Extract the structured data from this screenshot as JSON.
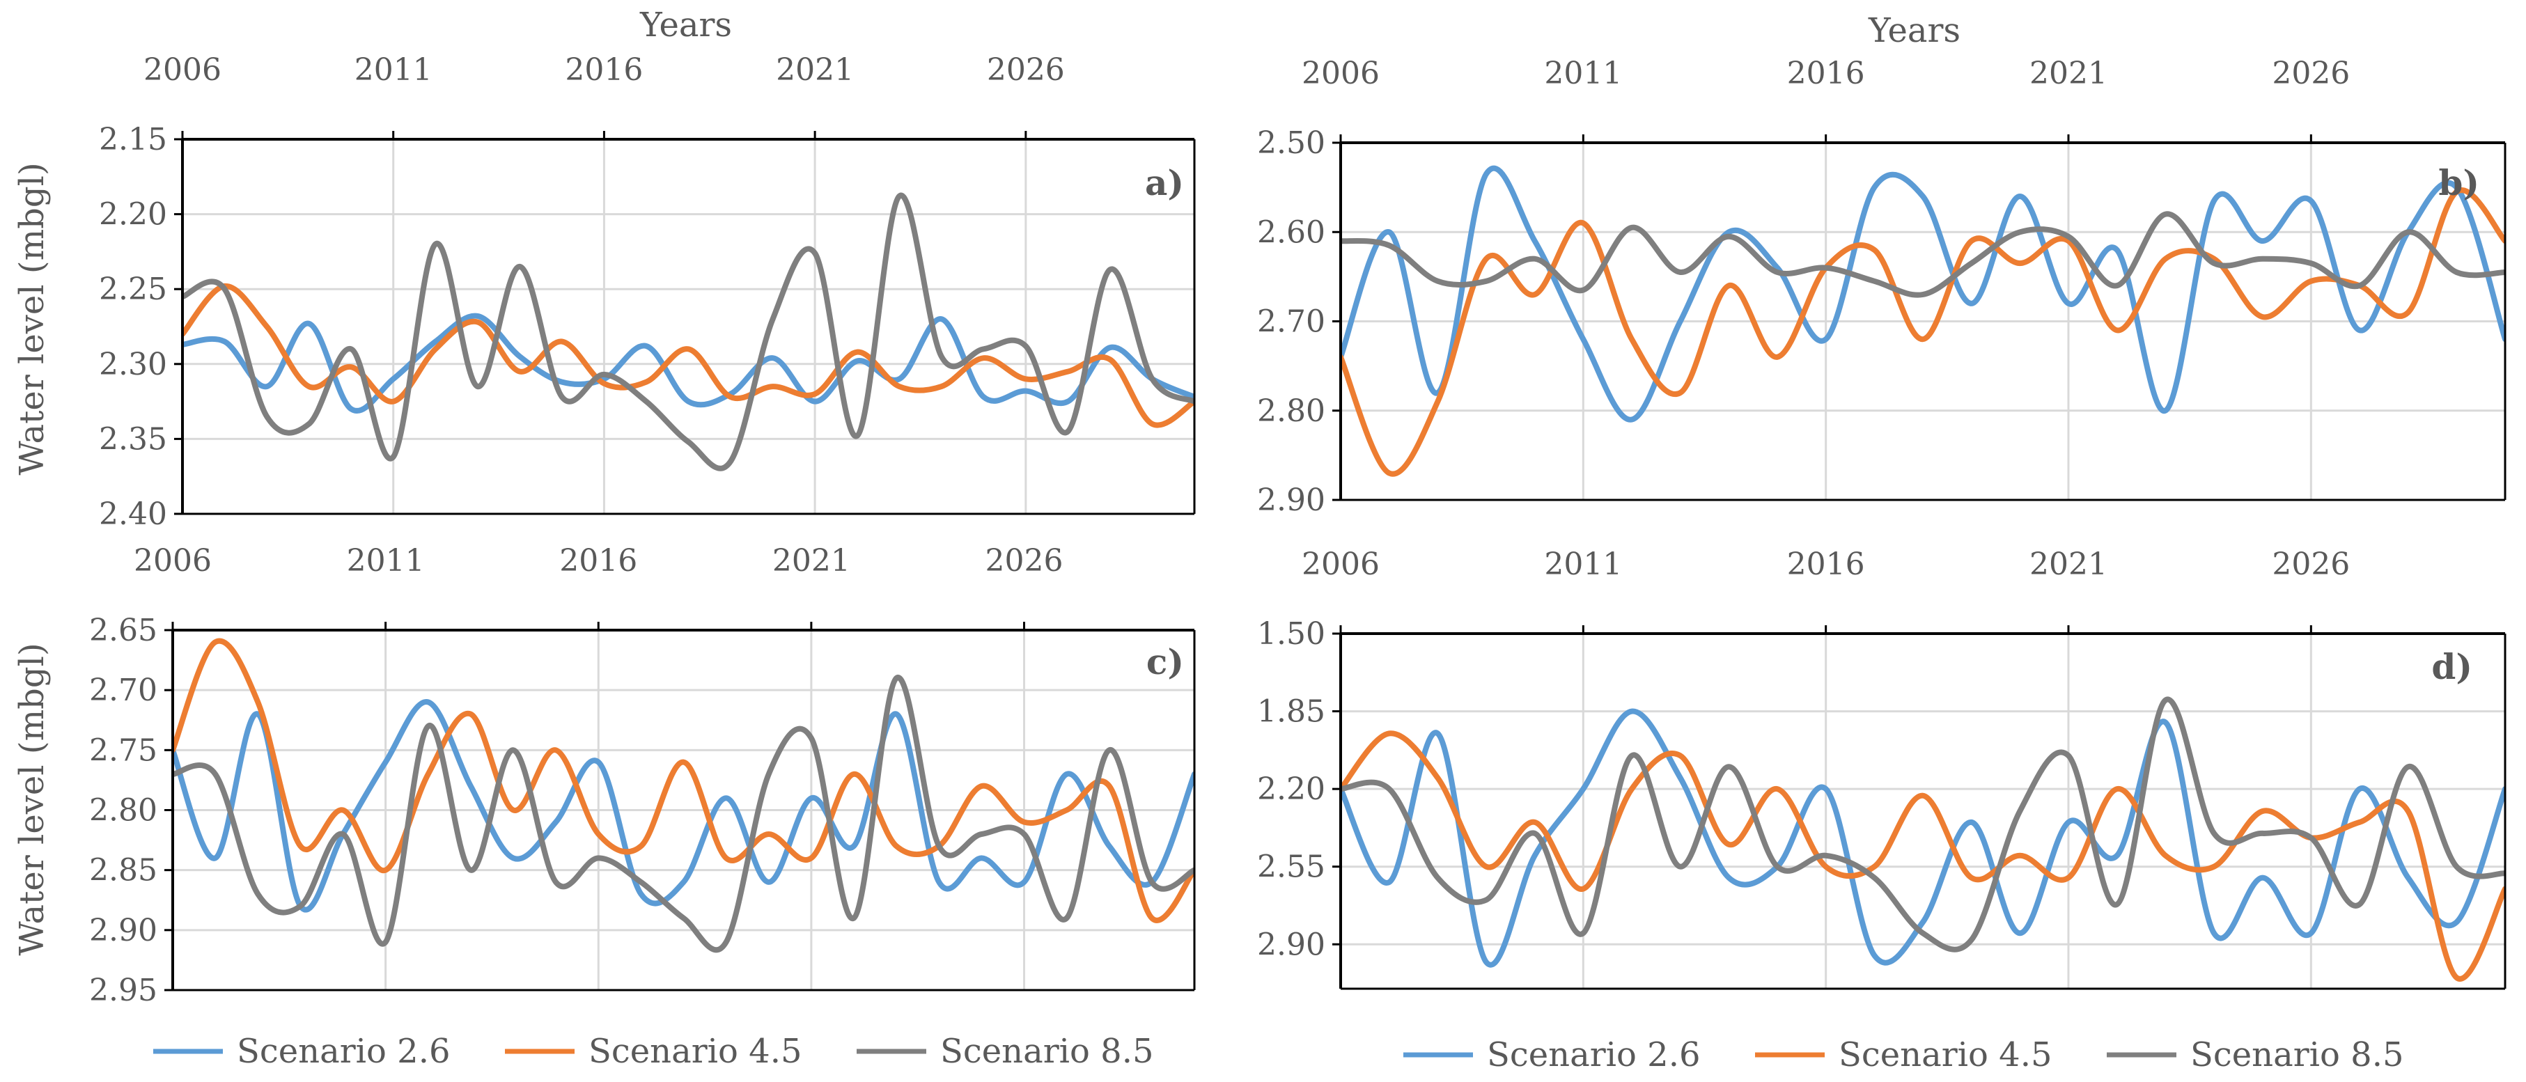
{
  "colors": {
    "scenario_2_6": "#5b9bd5",
    "scenario_4_5": "#ed7d31",
    "scenario_8_5": "#7f7f7f",
    "grid": "#d9d9d9",
    "axis": "#000000",
    "text": "#595959"
  },
  "chart_data": [
    {
      "type": "line",
      "panel_label": "a)",
      "title": "",
      "top_xlabel": "Years",
      "ylabel": "Water level (mbgl)",
      "x_tick_labels": [
        "2006",
        "2011",
        "2016",
        "2021",
        "2026"
      ],
      "xlim": [
        2006,
        2030
      ],
      "ylim": [
        2.15,
        2.4
      ],
      "y_inverted": true,
      "y_tick_labels": [
        "2.15",
        "2.20",
        "2.25",
        "2.30",
        "2.35",
        "2.40"
      ],
      "x": [
        2006,
        2007,
        2008,
        2009,
        2010,
        2011,
        2012,
        2013,
        2014,
        2015,
        2016,
        2017,
        2018,
        2019,
        2020,
        2021,
        2022,
        2023,
        2024,
        2025,
        2026,
        2027,
        2028,
        2029,
        2030
      ],
      "series": [
        {
          "name": "Scenario 2.6",
          "values": [
            2.287,
            2.285,
            2.315,
            2.273,
            2.33,
            2.31,
            2.285,
            2.268,
            2.295,
            2.312,
            2.31,
            2.288,
            2.325,
            2.32,
            2.296,
            2.325,
            2.298,
            2.31,
            2.27,
            2.322,
            2.318,
            2.325,
            2.289,
            2.31,
            2.322
          ]
        },
        {
          "name": "Scenario 4.5",
          "values": [
            2.28,
            2.248,
            2.275,
            2.315,
            2.302,
            2.325,
            2.29,
            2.272,
            2.305,
            2.285,
            2.313,
            2.312,
            2.29,
            2.322,
            2.315,
            2.32,
            2.292,
            2.315,
            2.315,
            2.296,
            2.31,
            2.305,
            2.297,
            2.34,
            2.325
          ]
        },
        {
          "name": "Scenario 8.5",
          "values": [
            2.255,
            2.25,
            2.335,
            2.34,
            2.29,
            2.362,
            2.22,
            2.315,
            2.235,
            2.322,
            2.307,
            2.325,
            2.352,
            2.365,
            2.27,
            2.226,
            2.348,
            2.188,
            2.295,
            2.29,
            2.288,
            2.345,
            2.237,
            2.31,
            2.325
          ]
        }
      ]
    },
    {
      "type": "line",
      "panel_label": "b)",
      "title": "",
      "top_xlabel": "Years",
      "ylabel": "",
      "x_tick_labels": [
        "2006",
        "2011",
        "2016",
        "2021",
        "2026"
      ],
      "xlim": [
        2006,
        2030
      ],
      "ylim": [
        2.5,
        2.9
      ],
      "y_inverted": true,
      "y_tick_labels": [
        "2.50",
        "2.60",
        "2.70",
        "2.80",
        "2.90"
      ],
      "x": [
        2006,
        2007,
        2008,
        2009,
        2010,
        2011,
        2012,
        2013,
        2014,
        2015,
        2016,
        2017,
        2018,
        2019,
        2020,
        2021,
        2022,
        2023,
        2024,
        2025,
        2026,
        2027,
        2028,
        2029,
        2030
      ],
      "series": [
        {
          "name": "Scenario 2.6",
          "values": [
            2.74,
            2.6,
            2.78,
            2.535,
            2.61,
            2.72,
            2.81,
            2.7,
            2.6,
            2.64,
            2.72,
            2.55,
            2.56,
            2.68,
            2.56,
            2.68,
            2.62,
            2.8,
            2.565,
            2.61,
            2.565,
            2.71,
            2.6,
            2.55,
            2.72
          ]
        },
        {
          "name": "Scenario 4.5",
          "values": [
            2.74,
            2.87,
            2.79,
            2.63,
            2.67,
            2.59,
            2.72,
            2.78,
            2.66,
            2.74,
            2.64,
            2.62,
            2.72,
            2.61,
            2.635,
            2.61,
            2.71,
            2.63,
            2.63,
            2.695,
            2.655,
            2.66,
            2.69,
            2.555,
            2.61
          ]
        },
        {
          "name": "Scenario 8.5",
          "values": [
            2.61,
            2.615,
            2.655,
            2.655,
            2.63,
            2.665,
            2.595,
            2.645,
            2.605,
            2.645,
            2.64,
            2.655,
            2.67,
            2.635,
            2.6,
            2.605,
            2.66,
            2.58,
            2.635,
            2.63,
            2.635,
            2.66,
            2.6,
            2.645,
            2.645
          ]
        }
      ]
    },
    {
      "type": "line",
      "panel_label": "c)",
      "title": "",
      "top_xlabel": "",
      "ylabel": "Water level (mbgl)",
      "x_tick_labels": [
        "2006",
        "2011",
        "2016",
        "2021",
        "2026"
      ],
      "xlim": [
        2006,
        2030
      ],
      "ylim": [
        2.65,
        2.95
      ],
      "y_inverted": true,
      "y_tick_labels": [
        "2.65",
        "2.70",
        "2.75",
        "2.80",
        "2.85",
        "2.90",
        "2.95"
      ],
      "x": [
        2006,
        2007,
        2008,
        2009,
        2010,
        2011,
        2012,
        2013,
        2014,
        2015,
        2016,
        2017,
        2018,
        2019,
        2020,
        2021,
        2022,
        2023,
        2024,
        2025,
        2026,
        2027,
        2028,
        2029,
        2030
      ],
      "series": [
        {
          "name": "Scenario 2.6",
          "values": [
            2.75,
            2.84,
            2.72,
            2.88,
            2.82,
            2.76,
            2.71,
            2.78,
            2.84,
            2.81,
            2.76,
            2.87,
            2.86,
            2.79,
            2.86,
            2.79,
            2.83,
            2.72,
            2.86,
            2.84,
            2.86,
            2.77,
            2.83,
            2.86,
            2.77
          ]
        },
        {
          "name": "Scenario 4.5",
          "values": [
            2.75,
            2.66,
            2.71,
            2.83,
            2.8,
            2.85,
            2.77,
            2.72,
            2.8,
            2.75,
            2.82,
            2.83,
            2.76,
            2.84,
            2.82,
            2.84,
            2.77,
            2.83,
            2.83,
            2.78,
            2.81,
            2.8,
            2.78,
            2.89,
            2.85
          ]
        },
        {
          "name": "Scenario 8.5",
          "values": [
            2.77,
            2.77,
            2.87,
            2.88,
            2.82,
            2.91,
            2.73,
            2.85,
            2.75,
            2.86,
            2.84,
            2.86,
            2.89,
            2.91,
            2.77,
            2.74,
            2.89,
            2.69,
            2.83,
            2.82,
            2.82,
            2.89,
            2.75,
            2.86,
            2.85
          ]
        }
      ]
    },
    {
      "type": "line",
      "panel_label": "d)",
      "title": "",
      "top_xlabel": "",
      "ylabel": "",
      "x_tick_labels": [
        "2006",
        "2011",
        "2016",
        "2021",
        "2026"
      ],
      "xlim": [
        2006,
        2030
      ],
      "ylim": [
        1.5,
        3.1
      ],
      "y_inverted": true,
      "y_tick_labels": [
        "1.50",
        "1.85",
        "2.20",
        "2.55",
        "2.90"
      ],
      "y_tick_values": [
        1.5,
        1.85,
        2.2,
        2.55,
        2.9
      ],
      "x": [
        2006,
        2007,
        2008,
        2009,
        2010,
        2011,
        2012,
        2013,
        2014,
        2015,
        2016,
        2017,
        2018,
        2019,
        2020,
        2021,
        2022,
        2023,
        2024,
        2025,
        2026,
        2027,
        2028,
        2029,
        2030
      ],
      "series": [
        {
          "name": "Scenario 2.6",
          "values": [
            2.2,
            2.62,
            1.95,
            2.98,
            2.5,
            2.2,
            1.85,
            2.15,
            2.6,
            2.55,
            2.2,
            2.95,
            2.8,
            2.35,
            2.85,
            2.35,
            2.5,
            1.9,
            2.85,
            2.6,
            2.85,
            2.2,
            2.6,
            2.8,
            2.2
          ]
        },
        {
          "name": "Scenario 4.5",
          "values": [
            2.2,
            1.95,
            2.15,
            2.55,
            2.35,
            2.65,
            2.2,
            2.05,
            2.45,
            2.2,
            2.55,
            2.55,
            2.23,
            2.6,
            2.5,
            2.6,
            2.2,
            2.5,
            2.55,
            2.3,
            2.42,
            2.35,
            2.3,
            3.05,
            2.65
          ]
        },
        {
          "name": "Scenario 8.5",
          "values": [
            2.2,
            2.2,
            2.6,
            2.7,
            2.4,
            2.85,
            2.05,
            2.55,
            2.1,
            2.55,
            2.5,
            2.6,
            2.85,
            2.88,
            2.3,
            2.05,
            2.72,
            1.8,
            2.4,
            2.4,
            2.42,
            2.72,
            2.1,
            2.55,
            2.58
          ]
        }
      ]
    }
  ],
  "legend_left": {
    "items": [
      "Scenario 2.6",
      "Scenario 4.5",
      "Scenario 8.5"
    ]
  },
  "legend_right": {
    "items": [
      "Scenario 2.6",
      "Scenario 4.5",
      "Scenario 8.5"
    ]
  }
}
